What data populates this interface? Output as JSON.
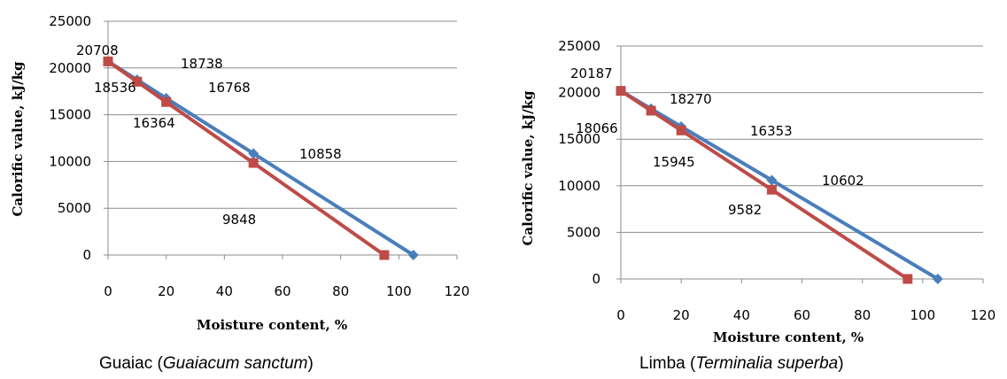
{
  "colors": {
    "series1": "#4a7ebb",
    "series2": "#be4b48"
  },
  "chart_data": [
    {
      "type": "line",
      "title": "",
      "xlabel": "Moisture content, %",
      "ylabel": "Calorific value, kJ/kg",
      "xlim": [
        0,
        120
      ],
      "ylim": [
        0,
        25000
      ],
      "xticks": [
        "0",
        "20",
        "40",
        "60",
        "80",
        "100",
        "120"
      ],
      "yticks": [
        "0",
        "5000",
        "10000",
        "15000",
        "20000",
        "25000"
      ],
      "grid": true,
      "legend": "none",
      "series": [
        {
          "x": [
            0,
            10,
            20,
            50,
            105
          ],
          "y": [
            20708,
            18738,
            16768,
            10858,
            0
          ],
          "marker": "diamond"
        },
        {
          "x": [
            0,
            10,
            20,
            50,
            95
          ],
          "y": [
            20708,
            18536,
            16364,
            9848,
            0
          ],
          "marker": "square"
        }
      ],
      "data_labels": [
        "20708",
        "18738",
        "18536",
        "16768",
        "16364",
        "10858",
        "9848"
      ],
      "caption_prefix": "Guaiac (",
      "caption_italic": "Guaiacum sanctum",
      "caption_suffix": ")"
    },
    {
      "type": "line",
      "title": "",
      "xlabel": "Moisture content, %",
      "ylabel": "Calorific value, kJ/kg",
      "xlim": [
        0,
        120
      ],
      "ylim": [
        0,
        25000
      ],
      "xticks": [
        "0",
        "20",
        "40",
        "60",
        "80",
        "100",
        "120"
      ],
      "yticks": [
        "0",
        "5000",
        "10000",
        "15000",
        "20000",
        "25000"
      ],
      "grid": true,
      "legend": "none",
      "series": [
        {
          "x": [
            0,
            10,
            20,
            50,
            105
          ],
          "y": [
            20187,
            18270,
            16353,
            10602,
            0
          ],
          "marker": "diamond"
        },
        {
          "x": [
            0,
            10,
            20,
            50,
            95
          ],
          "y": [
            20187,
            18066,
            15945,
            9582,
            0
          ],
          "marker": "square"
        }
      ],
      "data_labels": [
        "20187",
        "18270",
        "18066",
        "16353",
        "15945",
        "10602",
        "9582"
      ],
      "caption_prefix": "Limba (",
      "caption_italic": "Terminalia superba",
      "caption_suffix": ")"
    }
  ]
}
